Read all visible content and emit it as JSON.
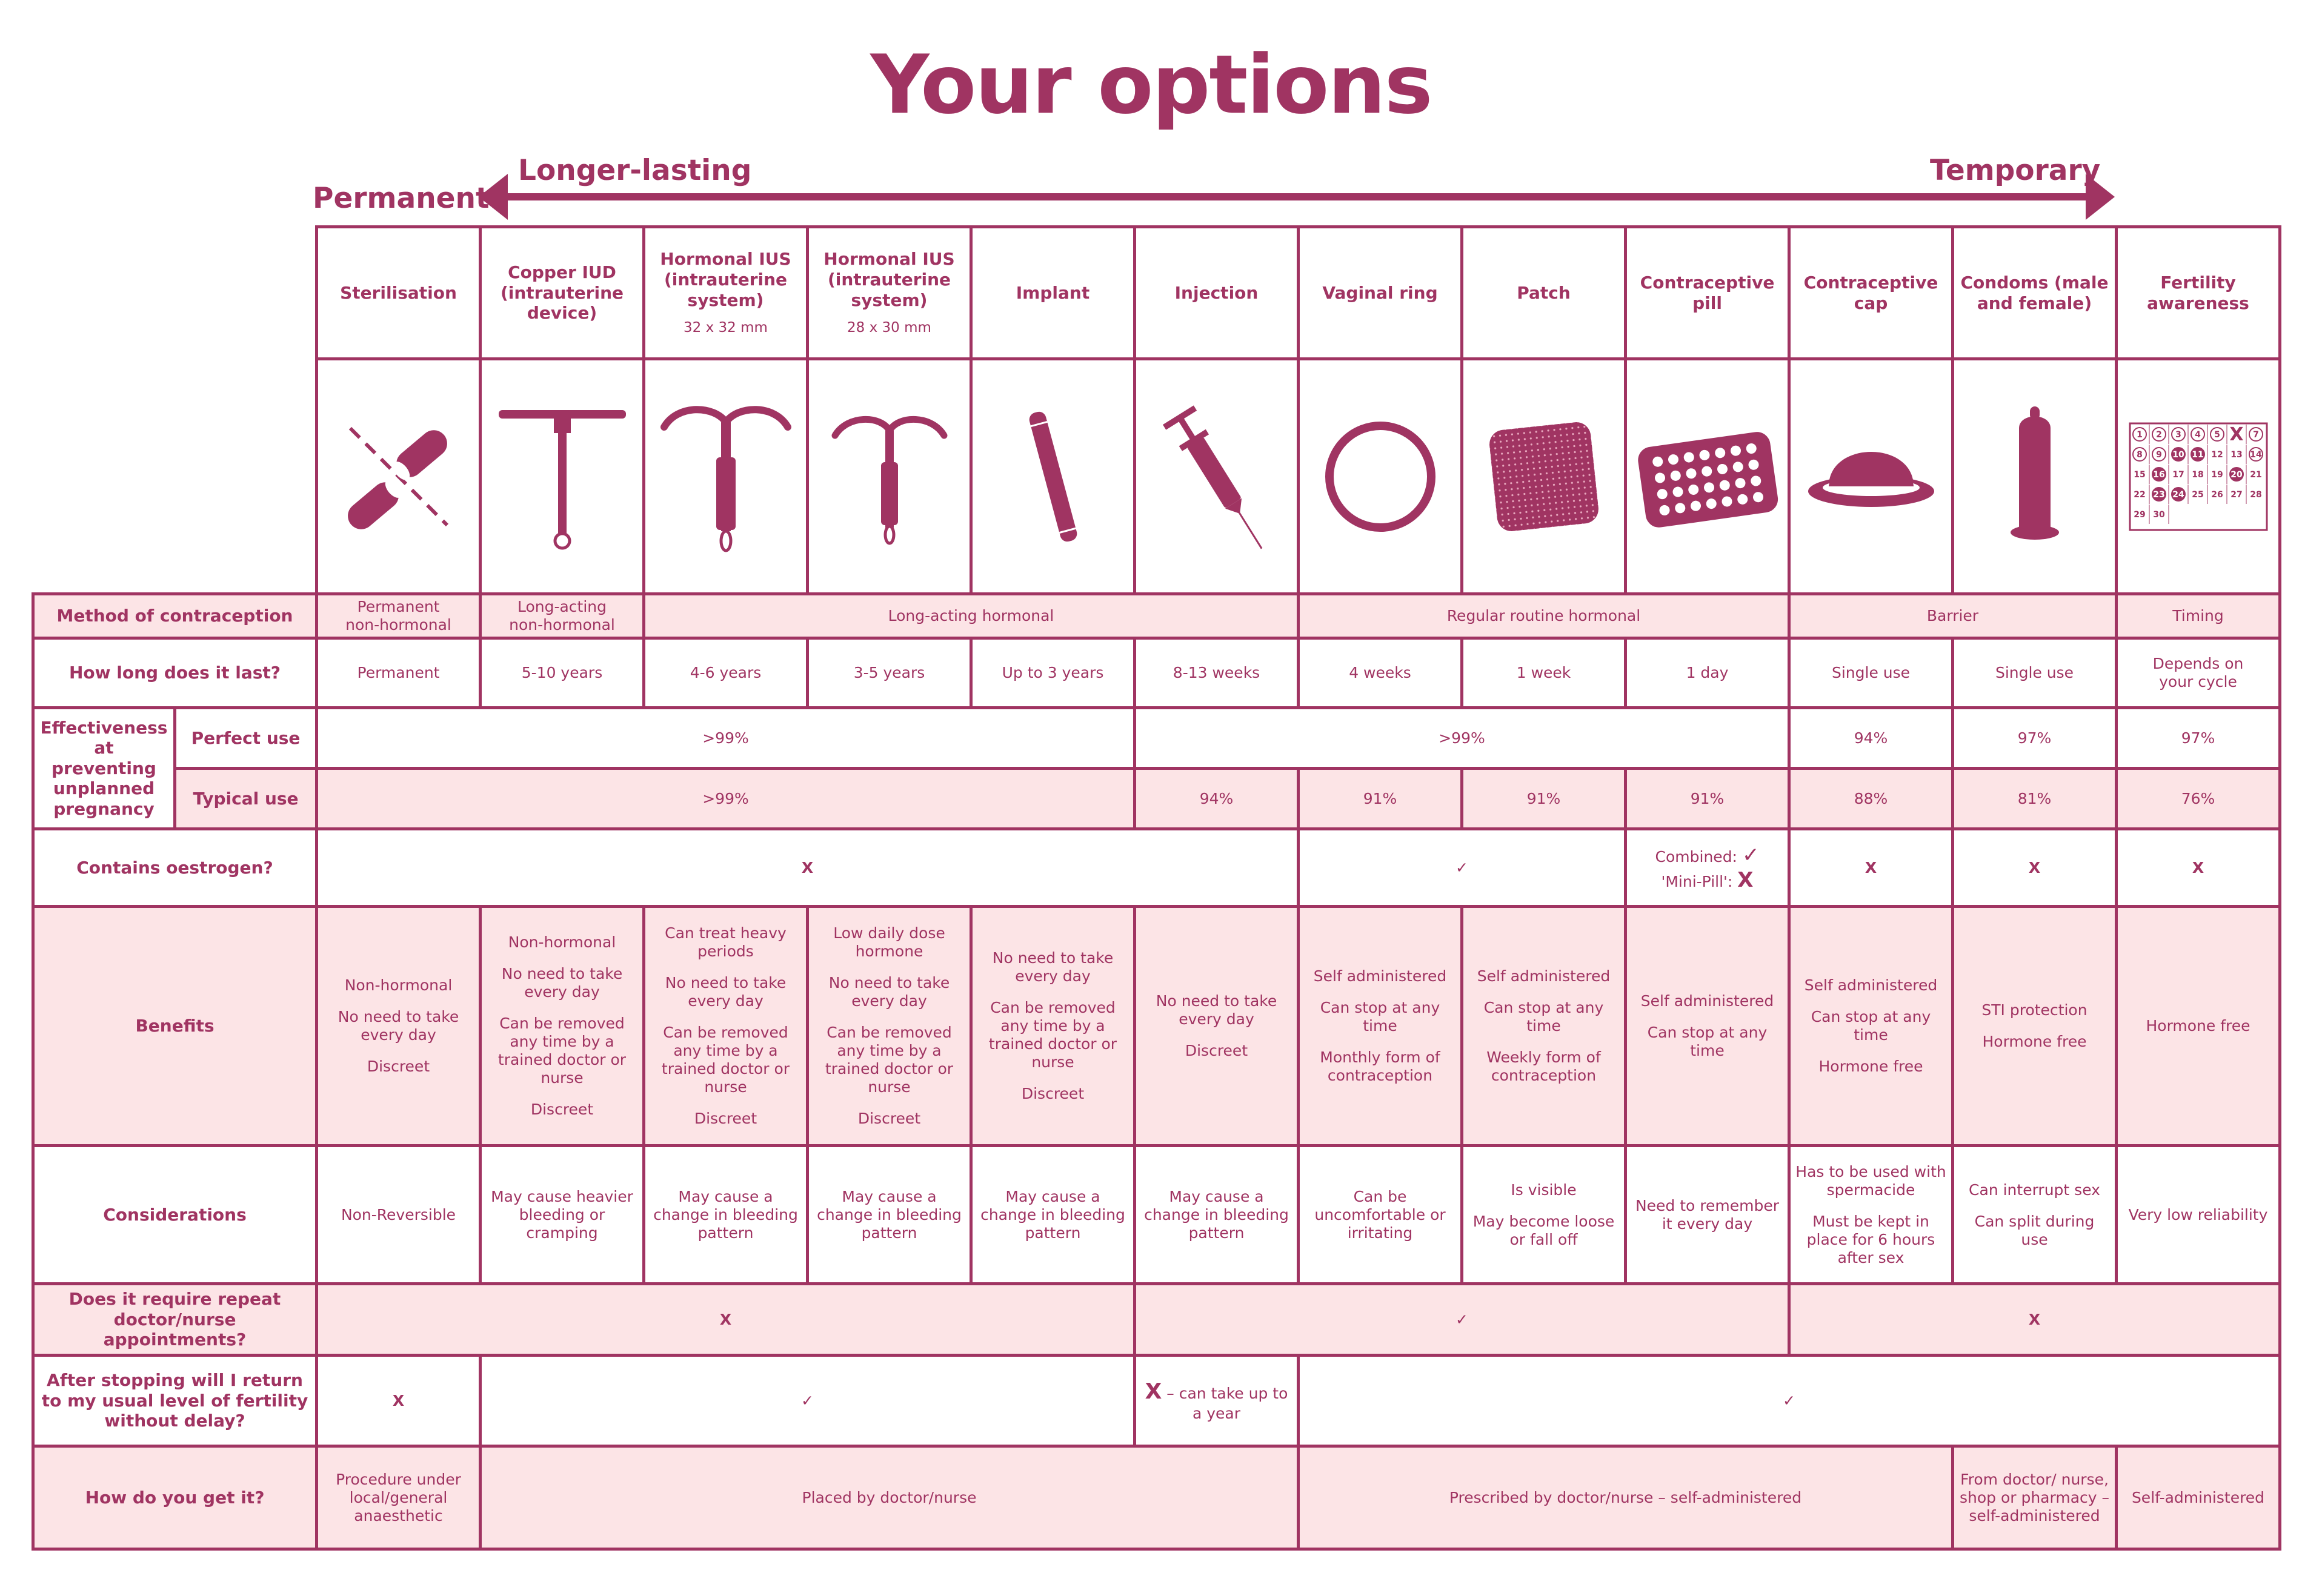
{
  "title": "Your options",
  "scale": {
    "permanent": "Permanent",
    "longer_lasting": "Longer-lasting",
    "temporary": "Temporary"
  },
  "columns": [
    {
      "name": "Sterilisation",
      "icon": "sterilisation-icon"
    },
    {
      "name": "Copper IUD (intrauterine device)",
      "icon": "copper-iud-icon"
    },
    {
      "name": "Hormonal IUS (intrauterine system)",
      "size": "32 x 32 mm",
      "icon": "hormonal-ius-large-icon"
    },
    {
      "name": "Hormonal IUS (intrauterine system)",
      "size": "28 x 30 mm",
      "icon": "hormonal-ius-small-icon"
    },
    {
      "name": "Implant",
      "icon": "implant-icon"
    },
    {
      "name": "Injection",
      "icon": "syringe-icon"
    },
    {
      "name": "Vaginal ring",
      "icon": "ring-icon"
    },
    {
      "name": "Patch",
      "icon": "patch-icon"
    },
    {
      "name": "Contraceptive pill",
      "icon": "pill-pack-icon"
    },
    {
      "name": "Contraceptive cap",
      "icon": "cap-icon"
    },
    {
      "name": "Condoms (male and female)",
      "icon": "condom-icon"
    },
    {
      "name": "Fertility awareness",
      "icon": "calendar-icon"
    }
  ],
  "calendar_days": [
    "1",
    "2",
    "3",
    "4",
    "5",
    "X",
    "7",
    "8",
    "9",
    "10",
    "11",
    "12",
    "13",
    "14",
    "15",
    "16",
    "17",
    "18",
    "19",
    "20",
    "21",
    "22",
    "23",
    "24",
    "25",
    "26",
    "27",
    "28",
    "29",
    "30"
  ],
  "rows": {
    "method": {
      "label": "Method of contraception",
      "cells": [
        "Permanent\nnon-hormonal",
        "Long-acting\nnon-hormonal",
        "Long-acting hormonal",
        "Regular routine hormonal",
        "Barrier",
        "Timing"
      ]
    },
    "duration": {
      "label": "How long does it last?",
      "cells": [
        "Permanent",
        "5-10 years",
        "4-6 years",
        "3-5 years",
        "Up to 3 years",
        "8-13 weeks",
        "4 weeks",
        "1 week",
        "1 day",
        "Single use",
        "Single use",
        "Depends on\nyour cycle"
      ]
    },
    "effectiveness": {
      "label": "Effectiveness at preventing unplanned pregnancy",
      "perfect_label": "Perfect use",
      "perfect": [
        ">99%",
        ">99%",
        "94%",
        "97%",
        "97%"
      ],
      "typical_label": "Typical use",
      "typical": [
        ">99%",
        "94%",
        "91%",
        "91%",
        "91%",
        "88%",
        "81%",
        "76%"
      ]
    },
    "oestrogen": {
      "label": "Contains oestrogen?",
      "cells": [
        "X",
        "✓",
        "",
        "X",
        "X",
        "X"
      ],
      "pill_combined": "Combined:",
      "pill_combined_mark": "✓",
      "pill_mini": "'Mini-Pill':",
      "pill_mini_mark": "X"
    },
    "benefits": {
      "label": "Benefits",
      "cells": [
        [
          "Non-hormonal",
          "No need to take every day",
          "Discreet"
        ],
        [
          "Non-hormonal",
          "No need to take every day",
          "Can be removed any time by a trained doctor or nurse",
          "Discreet"
        ],
        [
          "Can treat heavy periods",
          "No need to take every day",
          "Can be removed any time by a trained doctor or nurse",
          "Discreet"
        ],
        [
          "Low daily dose hormone",
          "No need to take every day",
          "Can be removed any time by a trained doctor or nurse",
          "Discreet"
        ],
        [
          "No need to take every day",
          "Can be removed any time by a trained doctor or nurse",
          "Discreet"
        ],
        [
          "No need to take every day",
          "Discreet"
        ],
        [
          "Self administered",
          "Can stop at any time",
          "Monthly form of contraception"
        ],
        [
          "Self administered",
          "Can stop at any time",
          "Weekly form of contraception"
        ],
        [
          "Self administered",
          "Can stop at any time"
        ],
        [
          "Self administered",
          "Can stop at any time",
          "Hormone free"
        ],
        [
          "STI protection",
          "Hormone free"
        ],
        [
          "Hormone free"
        ]
      ]
    },
    "considerations": {
      "label": "Considerations",
      "cells": [
        [
          "Non-Reversible"
        ],
        [
          "May cause heavier bleeding or cramping"
        ],
        [
          "May cause a change in bleeding pattern"
        ],
        [
          "May cause a change in bleeding pattern"
        ],
        [
          "May cause a change in bleeding pattern"
        ],
        [
          "May cause a change in bleeding pattern"
        ],
        [
          "Can be uncomfortable or irritating"
        ],
        [
          "Is visible",
          "May become loose or fall off"
        ],
        [
          "Need to remember it every day"
        ],
        [
          "Has to be used with spermacide",
          "Must be kept in place for 6 hours after sex"
        ],
        [
          "Can interrupt sex",
          "Can split during use"
        ],
        [
          "Very low reliability"
        ]
      ]
    },
    "appointments": {
      "label": "Does it require repeat doctor/nurse appointments?",
      "cells": [
        "X",
        "✓",
        "X"
      ]
    },
    "fertility": {
      "label": "After stopping will I return to my usual level of fertility without delay?",
      "cells": [
        "X",
        "✓",
        "",
        "✓"
      ],
      "injection_mark": "X",
      "injection_note": "– can take up to a year"
    },
    "access": {
      "label": "How do you get it?",
      "cells": [
        "Procedure under local/general anaesthetic",
        "Placed by doctor/nurse",
        "Prescribed by doctor/nurse – self-administered",
        "From doctor/ nurse, shop or pharmacy – self-administered",
        "Self-administered"
      ]
    }
  },
  "colors": {
    "accent": "#a03462",
    "pink": "#fce4e6"
  }
}
